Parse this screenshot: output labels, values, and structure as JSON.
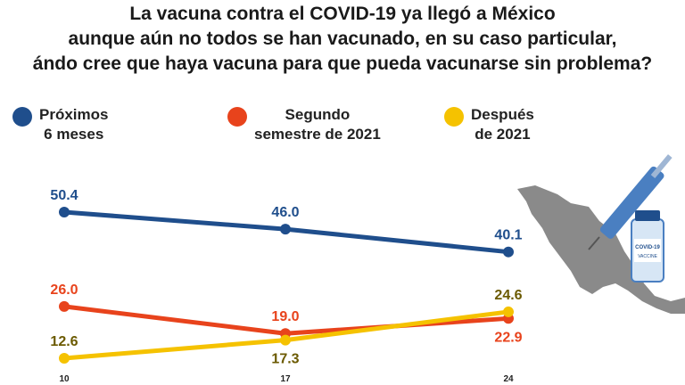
{
  "chart_data": {
    "type": "line",
    "title_lines": [
      "La vacuna contra el COVID-19 ya llegó a México",
      "aunque aún no todos se han vacunado, en su caso particular,",
      "ándo cree que haya vacuna para que pueda vacunarse sin problema?"
    ],
    "x": [
      "10",
      "17",
      "24"
    ],
    "series": [
      {
        "name_lines": [
          "Próximos",
          "6 meses"
        ],
        "color": "#1f4e8c",
        "values": [
          50.4,
          46.0,
          40.1
        ],
        "labels": [
          "50.4",
          "46.0",
          "40.1"
        ],
        "label_pos": [
          "above",
          "above",
          "above"
        ]
      },
      {
        "name_lines": [
          "Segundo",
          "semestre de 2021"
        ],
        "color": "#e8431c",
        "values": [
          26.0,
          19.0,
          22.9
        ],
        "labels": [
          "26.0",
          "19.0",
          "22.9"
        ],
        "label_pos": [
          "above",
          "above",
          "below"
        ]
      },
      {
        "name_lines": [
          "Después",
          "de 2021"
        ],
        "color": "#f5c200",
        "values": [
          12.6,
          17.3,
          24.6
        ],
        "labels": [
          "12.6",
          "17.3",
          "24.6"
        ],
        "label_pos": [
          "above",
          "below",
          "above"
        ]
      }
    ],
    "ylim": [
      10,
      55
    ],
    "grid": false,
    "legend_position": "top"
  },
  "decoration": {
    "map": "mexico-map",
    "vaccine_icon": "vaccine-syringe-icon",
    "vial_label": "COVID-19",
    "vial_sub": "VACCINE"
  }
}
